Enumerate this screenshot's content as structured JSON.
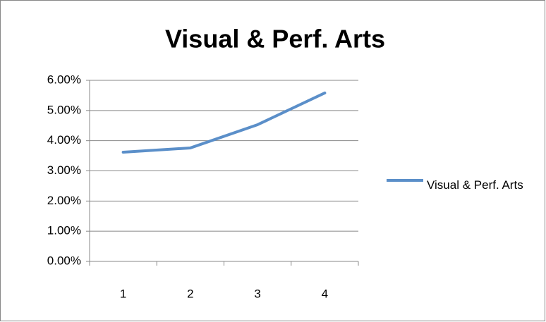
{
  "chart_data": {
    "type": "line",
    "title": "Visual & Perf. Arts",
    "categories": [
      "1",
      "2",
      "3",
      "4"
    ],
    "series": [
      {
        "name": "Visual & Perf. Arts",
        "color": "#5b8fc9",
        "values": [
          3.62,
          3.76,
          4.53,
          5.58
        ]
      }
    ],
    "ylim": [
      0,
      6
    ],
    "yticks": [
      {
        "value": 0,
        "label": "0.00%"
      },
      {
        "value": 1,
        "label": "1.00%"
      },
      {
        "value": 2,
        "label": "2.00%"
      },
      {
        "value": 3,
        "label": "3.00%"
      },
      {
        "value": 4,
        "label": "4.00%"
      },
      {
        "value": 5,
        "label": "5.00%"
      },
      {
        "value": 6,
        "label": "6.00%"
      }
    ],
    "grid": true,
    "legend": "right"
  }
}
